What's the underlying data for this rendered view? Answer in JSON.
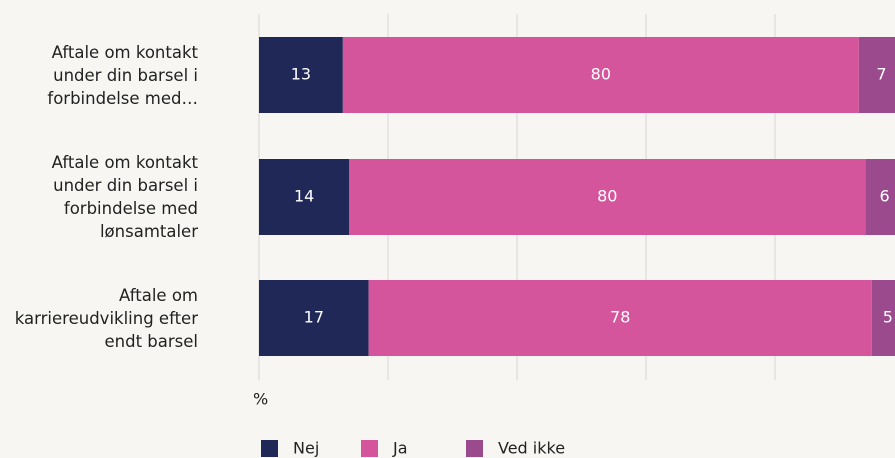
{
  "chart_data": {
    "type": "stacked_barh",
    "categories": [
      "Aftale om kontakt under din barsel i forbindelse med…",
      "Aftale om kontakt under din barsel i forbindelse med lønsamtaler",
      "Aftale om karriereudvikling efter endt barsel"
    ],
    "series": [
      {
        "name": "Nej",
        "color": "#1f2857",
        "values": [
          13,
          14,
          17
        ]
      },
      {
        "name": "Ja",
        "color": "#d4559b",
        "values": [
          80,
          80,
          78
        ]
      },
      {
        "name": "Ved ikke",
        "color": "#9c4a8e",
        "values": [
          7,
          6,
          5
        ]
      }
    ],
    "xlabel": "%",
    "xlim": [
      0,
      100
    ],
    "xticks": [
      0,
      20,
      40,
      60,
      80,
      100
    ],
    "grid": true
  }
}
